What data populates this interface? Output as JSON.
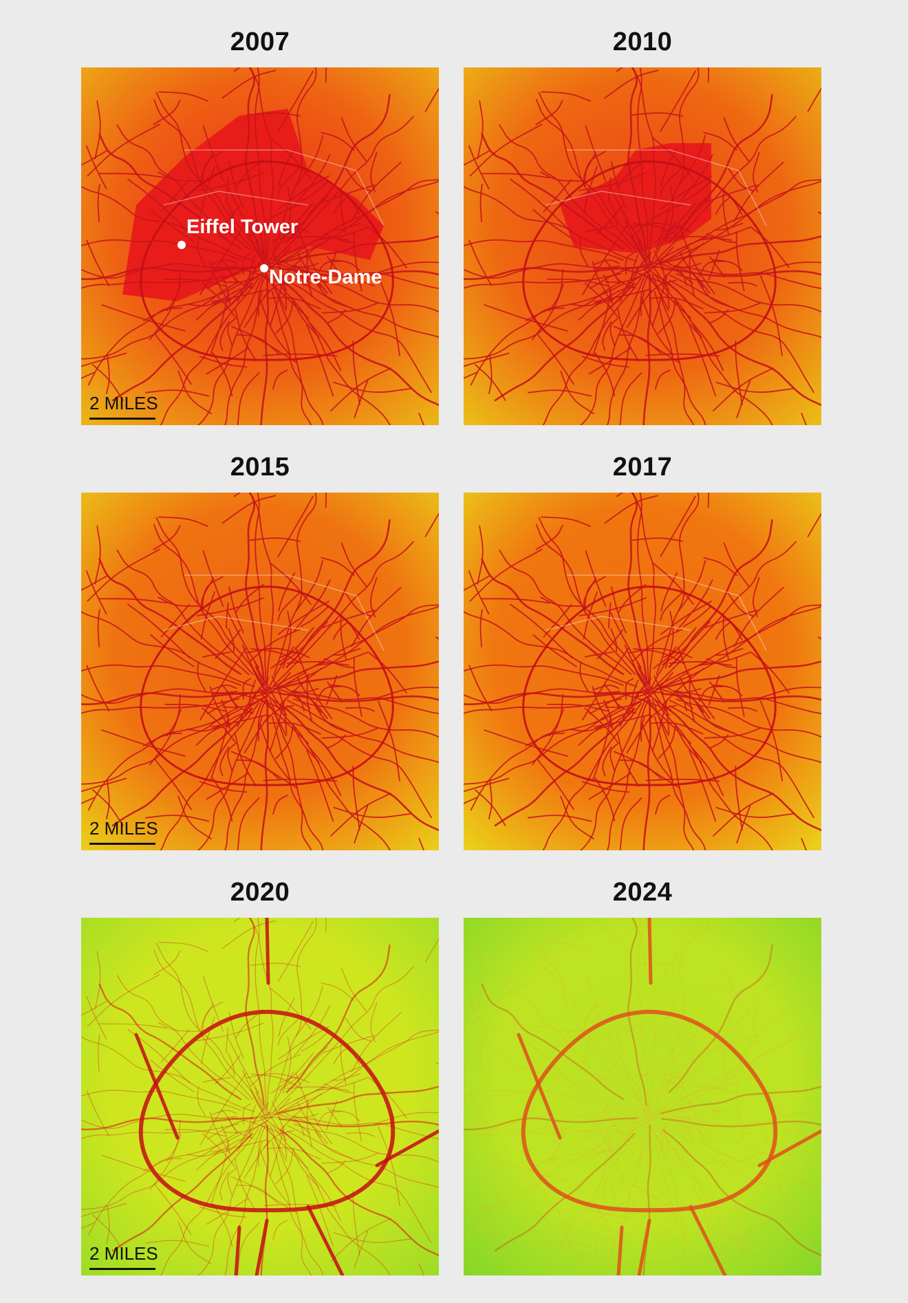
{
  "panels": [
    {
      "year": "2007",
      "level": 0.0,
      "scale_label": "2 MILES"
    },
    {
      "year": "2010",
      "level": 0.12,
      "scale_label": ""
    },
    {
      "year": "2015",
      "level": 0.35,
      "scale_label": "2 MILES"
    },
    {
      "year": "2017",
      "level": 0.42,
      "scale_label": ""
    },
    {
      "year": "2020",
      "level": 0.8,
      "scale_label": "2 MILES"
    },
    {
      "year": "2024",
      "level": 1.0,
      "scale_label": ""
    }
  ],
  "landmarks": {
    "eiffel": "Eiffel Tower",
    "notre_dame": "Notre-Dame"
  },
  "colors": {
    "background": "#ebebeb",
    "high": "#e81a1a",
    "mid": "#f07a10",
    "low_yellow": "#e8ec1c",
    "low_green": "#7fd52a",
    "road": "#c8141a"
  }
}
